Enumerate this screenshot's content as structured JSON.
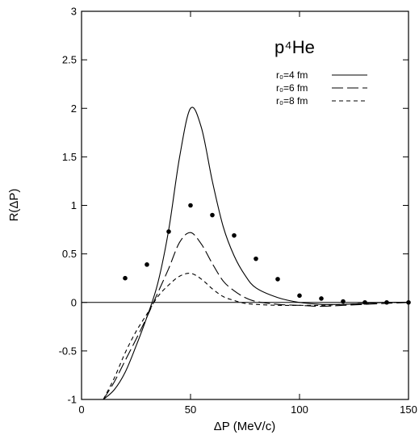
{
  "chart_data": {
    "type": "line",
    "title": "",
    "annotation": "p⁴He",
    "xlabel": "ΔP (MeV/c)",
    "ylabel": "R(ΔP)",
    "xlim": [
      0,
      150
    ],
    "ylim": [
      -1,
      3
    ],
    "x_ticks": [
      "0",
      "50",
      "100",
      "150"
    ],
    "y_ticks": [
      "-1",
      "-0.5",
      "0",
      "0.5",
      "1",
      "1.5",
      "2",
      "2.5",
      "3"
    ],
    "grid": false,
    "legend_placement": "top-right",
    "zero_line": true,
    "series": [
      {
        "name": "r₀=4 fm",
        "style": "solid",
        "x": [
          10,
          15,
          20,
          25,
          30,
          35,
          40,
          45,
          50,
          55,
          60,
          65,
          70,
          75,
          80,
          90,
          100,
          110,
          120,
          130,
          140,
          150
        ],
        "y": [
          -1.0,
          -0.9,
          -0.72,
          -0.45,
          -0.15,
          0.2,
          0.75,
          1.5,
          2.0,
          1.8,
          1.25,
          0.78,
          0.48,
          0.28,
          0.15,
          0.05,
          0.0,
          -0.02,
          -0.02,
          -0.01,
          0.0,
          0.0
        ]
      },
      {
        "name": "r₀=6 fm",
        "style": "long-dash",
        "x": [
          10,
          15,
          20,
          25,
          30,
          35,
          40,
          45,
          50,
          55,
          60,
          65,
          70,
          75,
          80,
          90,
          100,
          110,
          120,
          130,
          140,
          150
        ],
        "y": [
          -1.0,
          -0.82,
          -0.6,
          -0.38,
          -0.15,
          0.1,
          0.35,
          0.62,
          0.72,
          0.6,
          0.4,
          0.22,
          0.12,
          0.05,
          0.01,
          -0.02,
          -0.03,
          -0.04,
          -0.03,
          -0.02,
          -0.01,
          0.0
        ]
      },
      {
        "name": "r₀=8 fm",
        "style": "short-dash",
        "x": [
          10,
          15,
          20,
          25,
          30,
          35,
          40,
          45,
          50,
          55,
          60,
          65,
          70,
          75,
          80,
          90,
          100,
          110,
          120,
          130,
          140,
          150
        ],
        "y": [
          -1.0,
          -0.78,
          -0.52,
          -0.3,
          -0.12,
          0.06,
          0.18,
          0.27,
          0.3,
          0.24,
          0.14,
          0.06,
          0.02,
          -0.01,
          -0.02,
          -0.03,
          -0.03,
          -0.03,
          -0.02,
          -0.01,
          0.0,
          0.0
        ]
      },
      {
        "name": "",
        "style": "points",
        "x": [
          20,
          30,
          40,
          50,
          60,
          70,
          80,
          90,
          100,
          110,
          120,
          130,
          140,
          150
        ],
        "y": [
          0.25,
          0.39,
          0.73,
          1.0,
          0.9,
          0.69,
          0.45,
          0.24,
          0.07,
          0.04,
          0.01,
          0.0,
          0.0,
          0.0
        ]
      }
    ]
  }
}
